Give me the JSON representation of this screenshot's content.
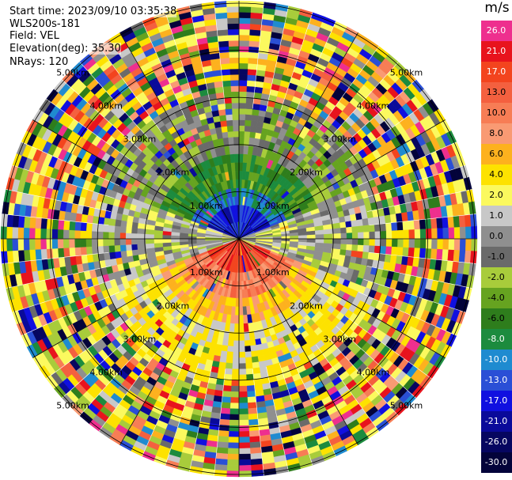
{
  "info": {
    "start_time": "Start time: 2023/09/10 03:35:38",
    "instrument": "WLS200s-181",
    "field": "Field: VEL",
    "elevation": "Elevation(deg): 35.30",
    "nrays": "NRays: 120"
  },
  "colorbar": {
    "unit": "m/s",
    "levels": [
      {
        "label": "26.0",
        "color": "#ee2f8e"
      },
      {
        "label": "21.0",
        "color": "#e8131d"
      },
      {
        "label": "17.0",
        "color": "#f3441e"
      },
      {
        "label": "13.0",
        "color": "#f4603f"
      },
      {
        "label": "10.0",
        "color": "#f77d55"
      },
      {
        "label": "8.0",
        "color": "#f99a73"
      },
      {
        "label": "6.0",
        "color": "#fdb11e"
      },
      {
        "label": "4.0",
        "color": "#fde200"
      },
      {
        "label": "2.0",
        "color": "#fbf95e"
      },
      {
        "label": "1.0",
        "color": "#c8c8c8"
      },
      {
        "label": "0.0",
        "color": "#8f8f8f"
      },
      {
        "label": "-1.0",
        "color": "#6a6a6a"
      },
      {
        "label": "-2.0",
        "color": "#a8cc3b"
      },
      {
        "label": "-4.0",
        "color": "#66a320"
      },
      {
        "label": "-6.0",
        "color": "#2e7d1c"
      },
      {
        "label": "-8.0",
        "color": "#1c8b3e"
      },
      {
        "label": "-10.0",
        "color": "#1f8bd0"
      },
      {
        "label": "-13.0",
        "color": "#2a4fd6"
      },
      {
        "label": "-17.0",
        "color": "#1010e0"
      },
      {
        "label": "-21.0",
        "color": "#0a0a9a"
      },
      {
        "label": "-26.0",
        "color": "#060660"
      },
      {
        "label": "-30.0",
        "color": "#03033a"
      }
    ]
  },
  "chart_data": {
    "type": "heatmap",
    "projection": "polar PPI",
    "field": "VEL",
    "units": "m/s",
    "rays": 120,
    "ring_labels": [
      "1.00km",
      "2.00km",
      "3.00km",
      "4.00km",
      "5.00km"
    ],
    "near_range_pattern": {
      "north_sector": "negative velocities (-6 to -21 m/s, blue/green)",
      "south_sector": "positive velocities (4 to 17 m/s, yellow/orange/red)",
      "east_west": "near 0 m/s (grey)",
      "far_range": "noisy mixed velocities across full scale"
    }
  }
}
